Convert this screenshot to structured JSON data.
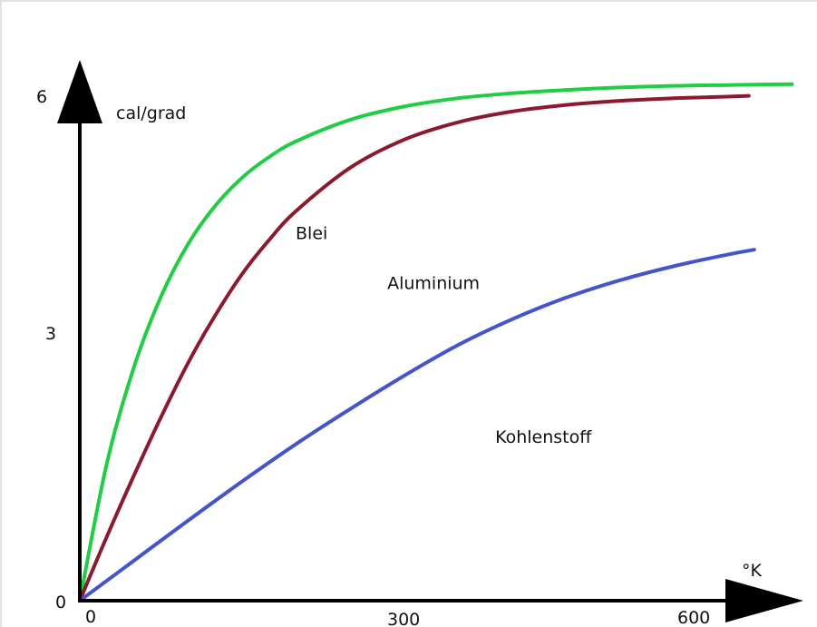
{
  "chart_data": {
    "type": "line",
    "title": "",
    "xlabel": "°K",
    "ylabel": "cal/grad",
    "xlim": [
      0,
      660
    ],
    "ylim": [
      0,
      6.3
    ],
    "x_ticks": [
      {
        "value": 0,
        "label": "0"
      },
      {
        "value": 300,
        "label": "300"
      },
      {
        "value": 600,
        "label": "600"
      }
    ],
    "y_ticks": [
      {
        "value": 0,
        "label": "0"
      },
      {
        "value": 3,
        "label": "3"
      },
      {
        "value": 6,
        "label": "6"
      }
    ],
    "grid": false,
    "legend": "none",
    "series": [
      {
        "name": "Blei",
        "color": "#22cc44",
        "label_at": [
          200,
          4.35
        ],
        "x": [
          0,
          25,
          50,
          75,
          100,
          125,
          150,
          175,
          200,
          250,
          300,
          350,
          400,
          450,
          500,
          550,
          600,
          660
        ],
        "y": [
          0,
          1.65,
          2.8,
          3.65,
          4.28,
          4.74,
          5.08,
          5.33,
          5.52,
          5.78,
          5.94,
          6.04,
          6.1,
          6.14,
          6.17,
          6.19,
          6.2,
          6.21
        ]
      },
      {
        "name": "Aluminium",
        "color": "#8b1a2e",
        "label_at": [
          285,
          3.75
        ],
        "x": [
          0,
          25,
          50,
          75,
          100,
          125,
          150,
          175,
          200,
          250,
          300,
          350,
          400,
          450,
          500,
          550,
          600,
          620
        ],
        "y": [
          0,
          0.77,
          1.5,
          2.2,
          2.85,
          3.42,
          3.92,
          4.33,
          4.68,
          5.2,
          5.54,
          5.75,
          5.88,
          5.96,
          6.01,
          6.04,
          6.06,
          6.07
        ]
      },
      {
        "name": "Kohlenstoff",
        "color": "#4455cc",
        "label_at": [
          385,
          1.9
        ],
        "x": [
          0,
          50,
          100,
          150,
          200,
          250,
          300,
          350,
          400,
          450,
          500,
          550,
          600,
          625
        ],
        "y": [
          0,
          0.48,
          0.96,
          1.43,
          1.88,
          2.3,
          2.7,
          3.07,
          3.38,
          3.64,
          3.85,
          4.02,
          4.16,
          4.22
        ]
      }
    ]
  }
}
